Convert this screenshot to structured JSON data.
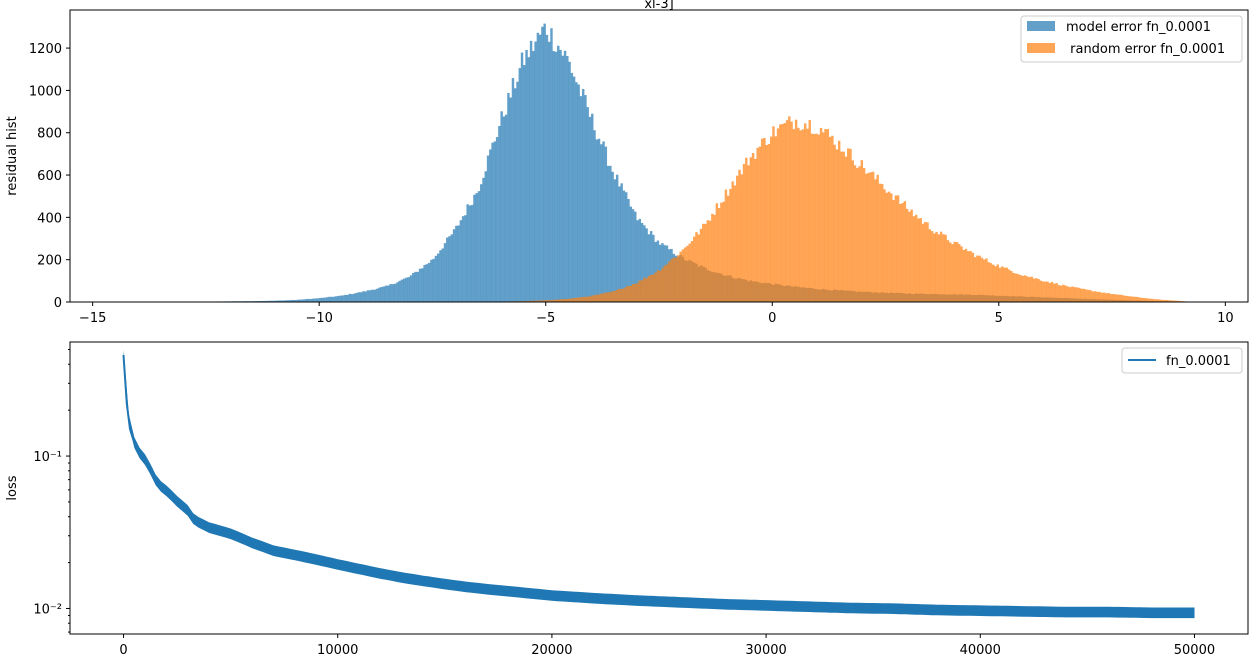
{
  "chart_data": [
    {
      "type": "histogram",
      "title": "xl-3]",
      "xlabel": "",
      "ylabel": "residual hist",
      "xlim": [
        -15.5,
        10.5
      ],
      "ylim": [
        0,
        1380
      ],
      "xticks": [
        -15,
        -10,
        -5,
        0,
        5,
        10
      ],
      "yticks": [
        0,
        200,
        400,
        600,
        800,
        1000,
        1200
      ],
      "legend_position": "top-right",
      "series": [
        {
          "name": "model error fn_0.0001",
          "color": "#1f77b4",
          "alpha": 0.7,
          "x": [
            -14.5,
            -14.0,
            -13.5,
            -13.0,
            -12.5,
            -12.0,
            -11.5,
            -11.0,
            -10.5,
            -10.0,
            -9.5,
            -9.0,
            -8.5,
            -8.0,
            -7.5,
            -7.0,
            -6.5,
            -6.0,
            -5.5,
            -5.0,
            -4.5,
            -4.0,
            -3.5,
            -3.0,
            -2.5,
            -2.0,
            -1.5,
            -1.0,
            -0.5,
            0.0,
            0.5,
            1.0,
            1.5,
            2.0,
            2.5,
            3.0,
            3.5,
            4.0,
            4.5,
            5.0,
            5.5,
            6.0,
            6.5,
            7.0,
            7.5,
            8.0,
            8.5,
            9.0,
            9.3
          ],
          "values": [
            1,
            1,
            2,
            2,
            2,
            3,
            4,
            6,
            10,
            18,
            30,
            50,
            75,
            120,
            200,
            340,
            530,
            850,
            1140,
            1300,
            1140,
            870,
            610,
            400,
            280,
            210,
            160,
            125,
            100,
            85,
            72,
            62,
            54,
            48,
            44,
            40,
            38,
            36,
            34,
            30,
            26,
            22,
            18,
            14,
            10,
            7,
            4,
            2,
            0
          ]
        },
        {
          "name": " random error fn_0.0001",
          "color": "#ff7f0e",
          "alpha": 0.7,
          "x": [
            -14.5,
            -14.0,
            -13.5,
            -13.0,
            -12.5,
            -12.0,
            -11.5,
            -11.0,
            -10.5,
            -10.0,
            -9.5,
            -9.0,
            -8.5,
            -8.0,
            -7.5,
            -7.0,
            -6.5,
            -6.0,
            -5.5,
            -5.0,
            -4.5,
            -4.0,
            -3.5,
            -3.0,
            -2.5,
            -2.0,
            -1.5,
            -1.0,
            -0.5,
            0.0,
            0.5,
            1.0,
            1.5,
            2.0,
            2.5,
            3.0,
            3.5,
            4.0,
            4.5,
            5.0,
            5.5,
            6.0,
            6.5,
            7.0,
            7.5,
            8.0,
            8.5,
            9.0,
            9.3
          ],
          "values": [
            0,
            0,
            0,
            0,
            0,
            0,
            0,
            0,
            0,
            0,
            0,
            0,
            0,
            0,
            0,
            0,
            1,
            2,
            4,
            8,
            15,
            28,
            50,
            90,
            150,
            240,
            360,
            520,
            680,
            800,
            860,
            830,
            740,
            640,
            540,
            440,
            350,
            280,
            220,
            170,
            130,
            100,
            75,
            55,
            38,
            24,
            12,
            5,
            0
          ]
        }
      ]
    },
    {
      "type": "line",
      "title": "",
      "xlabel": "",
      "ylabel": "loss",
      "yscale": "log",
      "xlim": [
        -2500,
        52500
      ],
      "ylim": [
        0.0068,
        0.56
      ],
      "xticks": [
        0,
        10000,
        20000,
        30000,
        40000,
        50000
      ],
      "yticks": [
        0.01,
        0.1
      ],
      "ytick_labels": [
        "10⁻²",
        "10⁻¹"
      ],
      "legend_position": "top-right",
      "series": [
        {
          "name": "fn_0.0001",
          "color": "#1f77b4",
          "x": [
            0,
            150,
            300,
            600,
            900,
            1200,
            1500,
            1800,
            2100,
            2400,
            2700,
            3000,
            3300,
            4000,
            5000,
            6000,
            7000,
            8000,
            9000,
            10000,
            11000,
            12000,
            13000,
            14000,
            15000,
            16000,
            17000,
            18000,
            19000,
            20000,
            22000,
            24000,
            26000,
            28000,
            30000,
            32000,
            34000,
            36000,
            38000,
            40000,
            42000,
            44000,
            46000,
            48000,
            50000
          ],
          "values": [
            0.46,
            0.22,
            0.15,
            0.11,
            0.1,
            0.085,
            0.07,
            0.062,
            0.058,
            0.052,
            0.048,
            0.044,
            0.038,
            0.034,
            0.031,
            0.027,
            0.024,
            0.0225,
            0.021,
            0.0195,
            0.0182,
            0.017,
            0.016,
            0.0152,
            0.0145,
            0.0139,
            0.0134,
            0.013,
            0.0126,
            0.0122,
            0.0117,
            0.0113,
            0.011,
            0.0107,
            0.0105,
            0.0103,
            0.0101,
            0.01,
            0.0098,
            0.0097,
            0.0096,
            0.0095,
            0.0095,
            0.0094,
            0.0094
          ]
        }
      ]
    }
  ]
}
